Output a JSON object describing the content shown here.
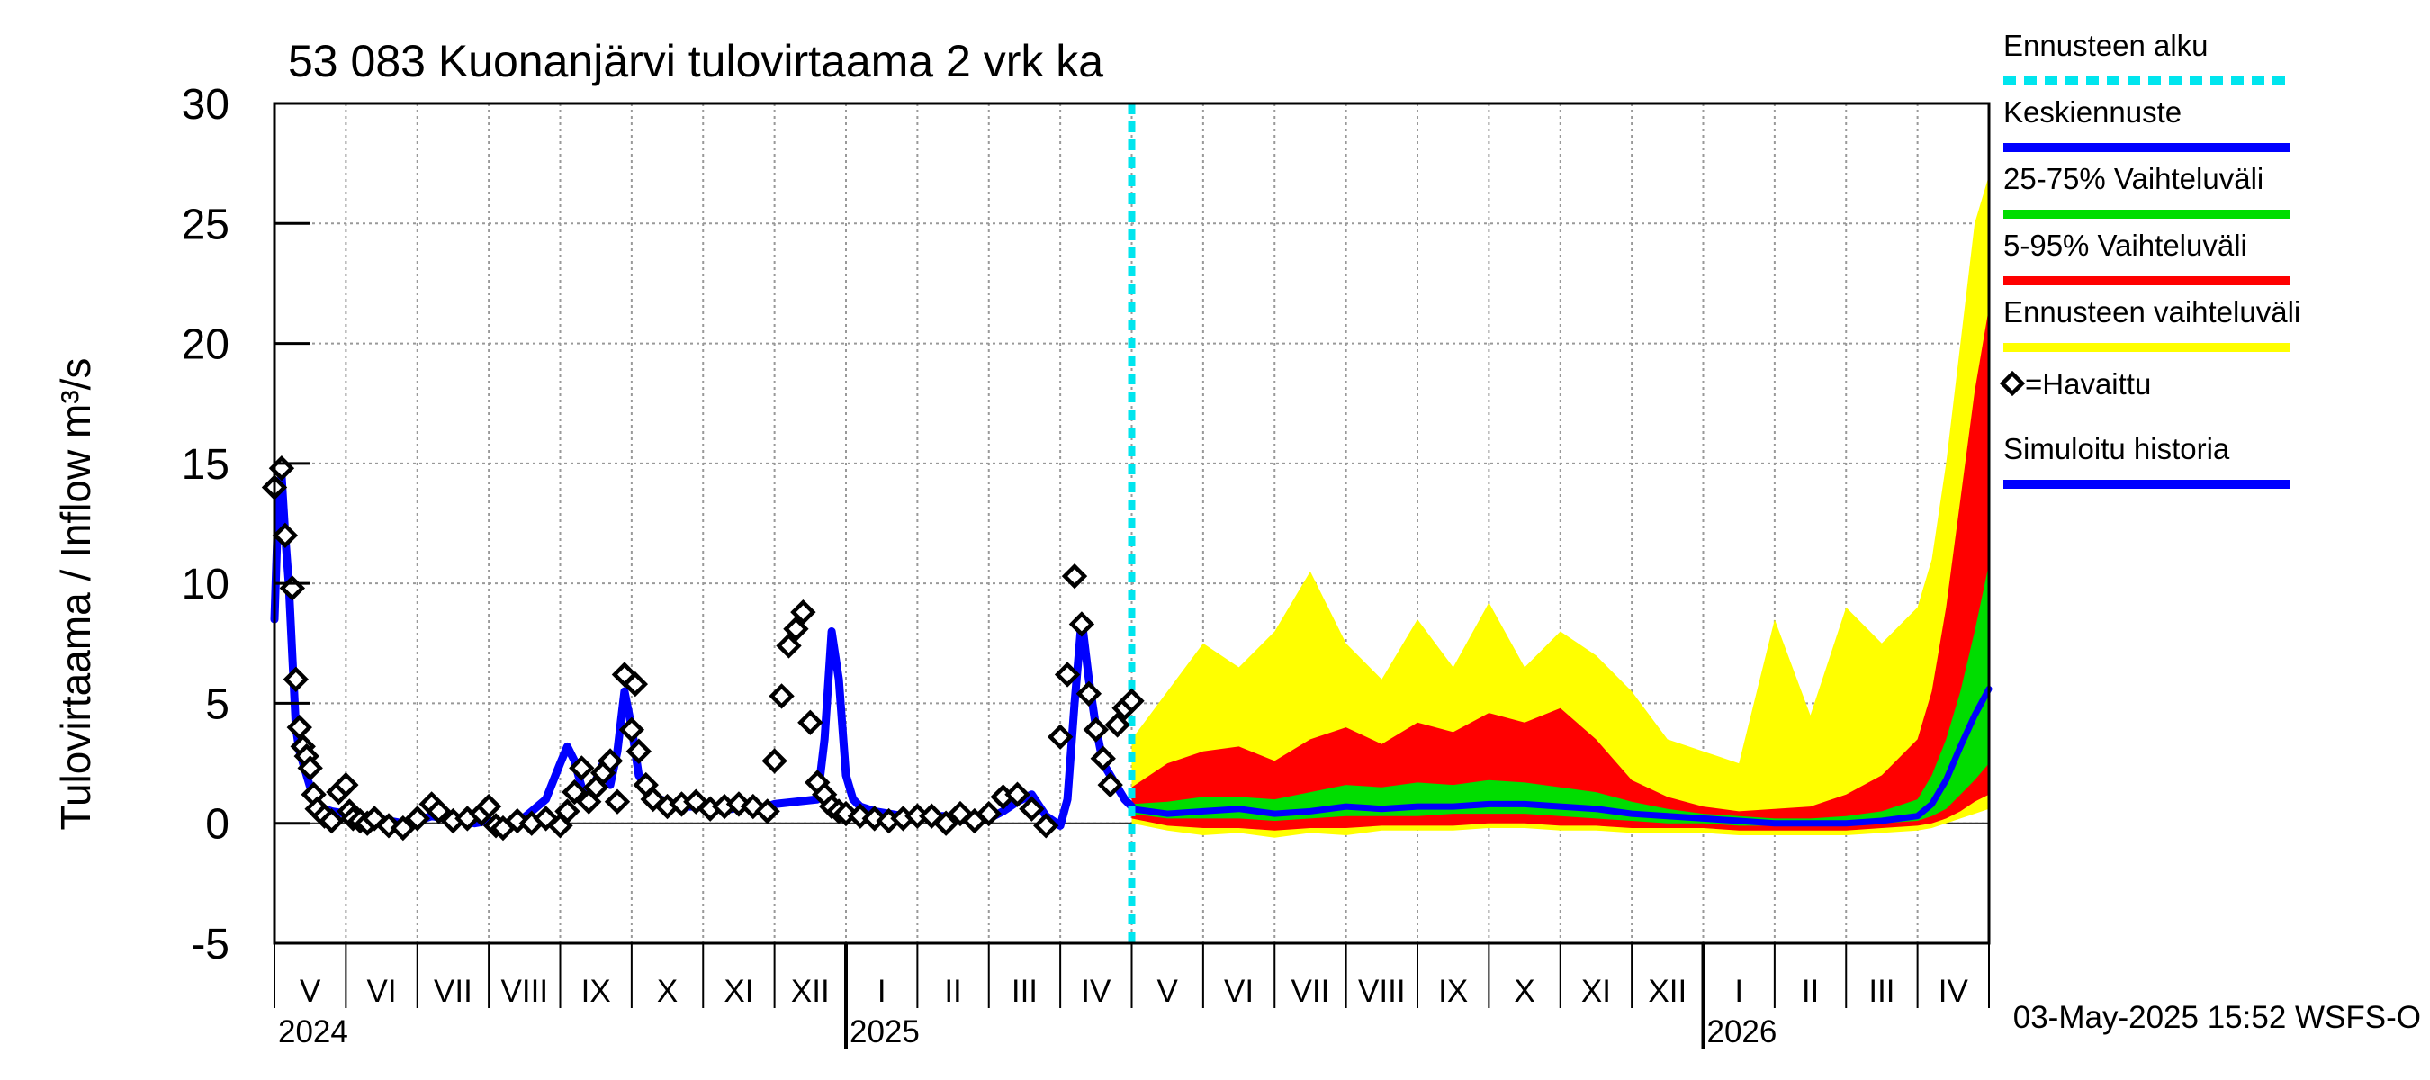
{
  "chart_data": {
    "type": "line",
    "title": "53 083 Kuonanjärvi tulovirtaama 2 vrk ka",
    "ylabel": "Tulovirtaama / Inflow    m³/s",
    "ylim": [
      -5,
      30
    ],
    "yticks": [
      -5,
      0,
      5,
      10,
      15,
      20,
      25,
      30
    ],
    "months": [
      "V",
      "VI",
      "VII",
      "VIII",
      "IX",
      "X",
      "XI",
      "XII",
      "I",
      "II",
      "III",
      "IV",
      "V",
      "VI",
      "VII",
      "VIII",
      "IX",
      "X",
      "XI",
      "XII",
      "I",
      "II",
      "III",
      "IV"
    ],
    "years": [
      {
        "label": "2024",
        "month_index": 0
      },
      {
        "label": "2025",
        "month_index": 8
      },
      {
        "label": "2026",
        "month_index": 20
      }
    ],
    "forecast_start_month": 12,
    "legend": [
      {
        "label": "Ennusteen alku",
        "color": "#00e5ee",
        "style": "dashed"
      },
      {
        "label": "Keskiennuste",
        "color": "#0000ff",
        "style": "line"
      },
      {
        "label": "25-75% Vaihteluväli",
        "color": "#00dd00",
        "style": "line"
      },
      {
        "label": "5-95% Vaihteluväli",
        "color": "#ff0000",
        "style": "line"
      },
      {
        "label": "Ennusteen vaihteluväli",
        "color": "#ffff00",
        "style": "line"
      },
      {
        "label": "=Havaittu",
        "color": "#000000",
        "style": "marker"
      },
      {
        "label": "Simuloitu historia",
        "color": "#0000ff",
        "style": "line"
      }
    ],
    "colors": {
      "grid": "#999999",
      "forecast_start": "#00e5ee",
      "median": "#0000ff",
      "iqr": "#00dd00",
      "p5_95": "#ff0000",
      "full_range": "#ffff00",
      "observed": "#000000",
      "simulated": "#0000ff"
    },
    "series": [
      {
        "name": "Simuloitu historia",
        "x": [
          0,
          0.05,
          0.1,
          0.15,
          0.2,
          0.25,
          0.3,
          0.35,
          0.4,
          0.5,
          0.6,
          0.7,
          0.8,
          1.0,
          1.2,
          1.4,
          1.6,
          1.8,
          2.0,
          2.2,
          2.4,
          2.6,
          2.8,
          3.0,
          3.2,
          3.4,
          3.6,
          3.8,
          4.0,
          4.1,
          4.2,
          4.3,
          4.4,
          4.5,
          4.6,
          4.7,
          4.8,
          4.9,
          5.0,
          5.1,
          5.2,
          5.3,
          5.4,
          5.6,
          5.8,
          6.0,
          6.2,
          6.4,
          6.6,
          6.8,
          7.0,
          7.6,
          7.7,
          7.8,
          7.9,
          8.0,
          8.1,
          8.2,
          8.4,
          8.6,
          8.8,
          9.0,
          9.2,
          9.4,
          9.6,
          9.8,
          10.0,
          10.2,
          10.4,
          10.6,
          10.8,
          11.0,
          11.1,
          11.2,
          11.3,
          11.4,
          11.5,
          11.6,
          11.7,
          11.8,
          11.9,
          12.0
        ],
        "y": [
          8.5,
          13,
          14.5,
          12,
          10,
          7,
          4,
          3,
          2.5,
          1.5,
          0.8,
          0.6,
          0.5,
          0.4,
          0.3,
          0.2,
          0.1,
          0.0,
          0.1,
          0.3,
          0.2,
          0.1,
          0.0,
          0.1,
          0.0,
          0.0,
          0.5,
          1.0,
          2.5,
          3.2,
          2.6,
          1.5,
          1.2,
          1.8,
          2.5,
          1.6,
          3.0,
          5.5,
          4.0,
          2.0,
          1.5,
          1.2,
          1.0,
          0.8,
          0.7,
          0.7,
          0.6,
          0.6,
          0.7,
          0.6,
          0.8,
          1.0,
          3.5,
          8.0,
          6.0,
          2.0,
          1.0,
          0.7,
          0.5,
          0.4,
          0.3,
          0.2,
          0.3,
          0.3,
          0.2,
          0.1,
          0.2,
          0.5,
          0.9,
          1.2,
          0.3,
          -0.1,
          1.0,
          5.0,
          8.5,
          6.0,
          4.0,
          2.5,
          2.0,
          1.5,
          1.0,
          0.7
        ]
      },
      {
        "name": "Havaittu",
        "x": [
          0.0,
          0.1,
          0.15,
          0.25,
          0.3,
          0.35,
          0.4,
          0.45,
          0.5,
          0.55,
          0.6,
          0.7,
          0.8,
          0.9,
          1.0,
          1.05,
          1.1,
          1.2,
          1.3,
          1.4,
          1.6,
          1.8,
          2.0,
          2.2,
          2.3,
          2.5,
          2.7,
          2.9,
          3.0,
          3.1,
          3.2,
          3.4,
          3.6,
          3.8,
          4.0,
          4.1,
          4.2,
          4.3,
          4.4,
          4.5,
          4.6,
          4.7,
          4.8,
          4.9,
          5.0,
          5.05,
          5.1,
          5.2,
          5.3,
          5.5,
          5.7,
          5.9,
          6.1,
          6.3,
          6.5,
          6.7,
          6.9,
          7.0,
          7.1,
          7.2,
          7.3,
          7.4,
          7.5,
          7.6,
          7.7,
          7.8,
          7.9,
          8.0,
          8.2,
          8.4,
          8.6,
          8.8,
          9.0,
          9.2,
          9.4,
          9.6,
          9.8,
          10.0,
          10.2,
          10.4,
          10.6,
          10.8,
          11.0,
          11.1,
          11.2,
          11.3,
          11.4,
          11.5,
          11.6,
          11.7,
          11.8,
          11.9,
          12.0
        ],
        "y": [
          14,
          14.8,
          12,
          9.8,
          6,
          4,
          3.2,
          2.8,
          2.3,
          1.2,
          0.6,
          0.3,
          0.1,
          1.3,
          1.6,
          0.5,
          0.2,
          0.1,
          0.0,
          0.2,
          -0.1,
          -0.2,
          0.2,
          0.8,
          0.5,
          0.1,
          0.2,
          0.4,
          0.7,
          -0.1,
          -0.2,
          0.1,
          0.0,
          0.2,
          -0.1,
          0.5,
          1.3,
          2.3,
          0.9,
          1.5,
          2.1,
          2.6,
          0.9,
          6.2,
          3.9,
          5.8,
          3.0,
          1.6,
          1.0,
          0.7,
          0.8,
          0.9,
          0.6,
          0.7,
          0.8,
          0.7,
          0.5,
          2.6,
          5.3,
          7.4,
          8.1,
          8.8,
          4.2,
          1.7,
          1.2,
          0.7,
          0.5,
          0.4,
          0.3,
          0.2,
          0.1,
          0.2,
          0.3,
          0.3,
          0.0,
          0.4,
          0.1,
          0.4,
          1.1,
          1.2,
          0.6,
          -0.1,
          3.6,
          6.2,
          10.3,
          8.3,
          5.4,
          3.9,
          2.7,
          1.6,
          4.1,
          4.8,
          5.1
        ]
      },
      {
        "name": "Keskiennuste",
        "x": [
          12,
          12.5,
          13,
          13.5,
          14,
          14.5,
          15,
          15.5,
          16,
          16.5,
          17,
          17.5,
          18,
          18.5,
          19,
          19.5,
          20,
          20.5,
          21,
          21.5,
          22,
          22.5,
          23,
          23.2,
          23.4,
          23.6,
          23.8,
          24
        ],
        "y": [
          0.6,
          0.4,
          0.5,
          0.6,
          0.4,
          0.5,
          0.7,
          0.6,
          0.7,
          0.7,
          0.8,
          0.8,
          0.7,
          0.6,
          0.4,
          0.3,
          0.2,
          0.1,
          0.0,
          0.0,
          0.0,
          0.1,
          0.3,
          0.8,
          1.8,
          3.2,
          4.5,
          5.6
        ]
      },
      {
        "name": "25-75% Vaihteluväli",
        "x": [
          12,
          12.5,
          13,
          13.5,
          14,
          14.5,
          15,
          15.5,
          16,
          16.5,
          17,
          17.5,
          18,
          18.5,
          19,
          19.5,
          20,
          20.5,
          21,
          21.5,
          22,
          22.5,
          23,
          23.2,
          23.4,
          23.6,
          23.8,
          24
        ],
        "low": [
          0.4,
          0.2,
          0.2,
          0.2,
          0.1,
          0.2,
          0.3,
          0.3,
          0.3,
          0.4,
          0.4,
          0.4,
          0.3,
          0.2,
          0.1,
          0.0,
          0.0,
          -0.1,
          -0.1,
          -0.1,
          -0.1,
          0.0,
          0.1,
          0.3,
          0.6,
          1.2,
          1.8,
          2.5
        ],
        "high": [
          0.8,
          0.9,
          1.1,
          1.1,
          1.0,
          1.3,
          1.6,
          1.5,
          1.7,
          1.6,
          1.8,
          1.7,
          1.5,
          1.3,
          0.9,
          0.6,
          0.4,
          0.3,
          0.2,
          0.2,
          0.3,
          0.5,
          1.0,
          2.0,
          3.5,
          5.5,
          8.0,
          10.8
        ]
      },
      {
        "name": "5-95% Vaihteluväli",
        "x": [
          12,
          12.5,
          13,
          13.5,
          14,
          14.5,
          15,
          15.5,
          16,
          16.5,
          17,
          17.5,
          18,
          18.5,
          19,
          19.5,
          20,
          20.5,
          21,
          21.5,
          22,
          22.5,
          23,
          23.2,
          23.4,
          23.6,
          23.8,
          24
        ],
        "low": [
          0.2,
          -0.1,
          -0.2,
          -0.2,
          -0.3,
          -0.2,
          -0.2,
          -0.1,
          -0.1,
          -0.1,
          0.0,
          0.0,
          -0.1,
          -0.1,
          -0.2,
          -0.2,
          -0.2,
          -0.3,
          -0.3,
          -0.3,
          -0.3,
          -0.2,
          -0.1,
          0.0,
          0.2,
          0.5,
          0.9,
          1.2
        ],
        "high": [
          1.5,
          2.5,
          3.0,
          3.2,
          2.6,
          3.5,
          4.0,
          3.3,
          4.2,
          3.8,
          4.6,
          4.2,
          4.8,
          3.5,
          1.8,
          1.1,
          0.7,
          0.5,
          0.6,
          0.7,
          1.2,
          2.0,
          3.5,
          5.5,
          9.0,
          13.5,
          18.0,
          21.5
        ]
      },
      {
        "name": "Ennusteen vaihteluväli",
        "x": [
          12,
          12.5,
          13,
          13.5,
          14,
          14.5,
          15,
          15.5,
          16,
          16.5,
          17,
          17.5,
          18,
          18.5,
          19,
          19.5,
          20,
          20.5,
          21,
          21.5,
          22,
          22.5,
          23,
          23.2,
          23.4,
          23.6,
          23.8,
          24
        ],
        "low": [
          0.0,
          -0.3,
          -0.5,
          -0.4,
          -0.6,
          -0.4,
          -0.5,
          -0.3,
          -0.3,
          -0.3,
          -0.2,
          -0.2,
          -0.3,
          -0.3,
          -0.4,
          -0.4,
          -0.4,
          -0.5,
          -0.5,
          -0.5,
          -0.5,
          -0.4,
          -0.3,
          -0.2,
          0.0,
          0.2,
          0.4,
          0.6
        ],
        "high": [
          3.5,
          5.5,
          7.5,
          6.5,
          8.0,
          10.5,
          7.5,
          6.0,
          8.5,
          6.5,
          9.2,
          6.5,
          8.0,
          7.0,
          5.5,
          3.5,
          3.0,
          2.5,
          8.5,
          4.5,
          9.0,
          7.5,
          9.0,
          11.0,
          15.0,
          20.0,
          25.0,
          27.0
        ]
      }
    ]
  },
  "footer": {
    "timestamp": "03-May-2025 15:52 WSFS-O"
  }
}
